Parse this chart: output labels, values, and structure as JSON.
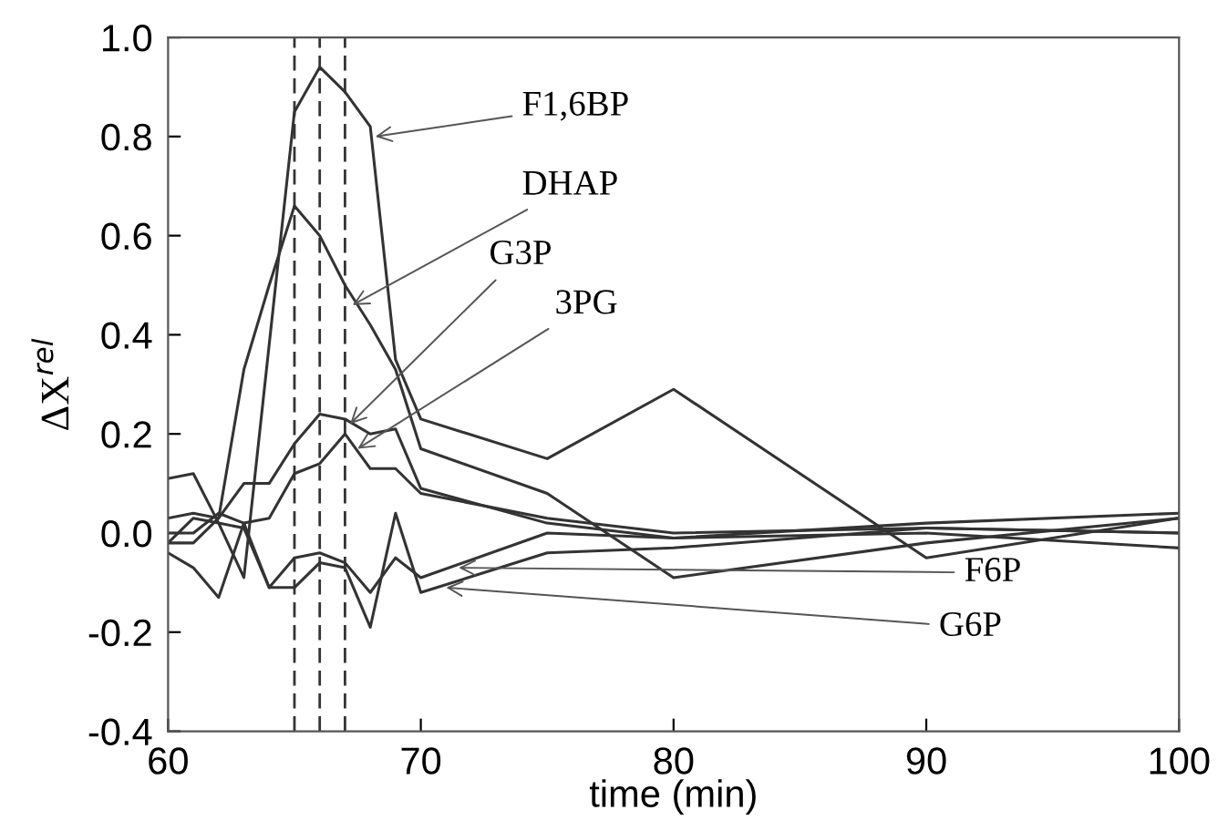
{
  "chart_data": {
    "type": "line",
    "xlabel": "time (min)",
    "ylabel": "ΔX$^{rel}$",
    "x": [
      60,
      61,
      62,
      63,
      64,
      65,
      66,
      67,
      68,
      69,
      70,
      75,
      80,
      90,
      100
    ],
    "series": [
      {
        "color": "#333333",
        "values": [
          0.11,
          0.12,
          0.02,
          -0.09,
          0.38,
          0.85,
          0.94,
          0.89,
          0.82,
          0.35,
          0.23,
          0.15,
          0.29,
          -0.05,
          0.03
        ]
      },
      {
        "color": "#333333",
        "values": [
          -0.02,
          -0.02,
          0.03,
          0.33,
          0.5,
          0.66,
          0.6,
          0.5,
          0.42,
          0.33,
          0.17,
          0.08,
          -0.09,
          -0.02,
          0.03
        ]
      },
      {
        "color": "#333333",
        "values": [
          0.03,
          0.04,
          0.03,
          0.1,
          0.1,
          0.18,
          0.24,
          0.23,
          0.2,
          0.21,
          0.09,
          0.02,
          -0.01,
          0.0,
          -0.03
        ]
      },
      {
        "color": "#333333",
        "values": [
          0.0,
          0.0,
          0.04,
          0.02,
          0.03,
          0.12,
          0.14,
          0.2,
          0.13,
          0.13,
          0.08,
          0.03,
          0.0,
          0.01,
          0.0
        ]
      },
      {
        "color": "#333333",
        "values": [
          -0.02,
          0.03,
          0.02,
          0.01,
          -0.11,
          -0.05,
          -0.04,
          -0.06,
          -0.12,
          -0.05,
          -0.09,
          0.0,
          -0.01,
          0.02,
          0.04
        ]
      },
      {
        "color": "#333333",
        "values": [
          -0.04,
          -0.07,
          -0.13,
          0.02,
          -0.11,
          -0.11,
          -0.06,
          -0.07,
          -0.19,
          0.04,
          -0.12,
          -0.04,
          -0.03,
          0.01,
          0.0
        ]
      }
    ],
    "xlim": [
      60,
      100
    ],
    "xticks": [
      60,
      70,
      80,
      90,
      100
    ],
    "ylim": [
      -0.4,
      1.0
    ],
    "yticks": [
      {
        "value": -0.4,
        "label": "-0.4"
      },
      {
        "value": -0.2,
        "label": "-0.2"
      },
      {
        "value": 0.0,
        "label": "0.0"
      },
      {
        "value": 0.2,
        "label": "0.2"
      },
      {
        "value": 0.4,
        "label": "0.4"
      },
      {
        "value": 0.6,
        "label": "0.6"
      },
      {
        "value": 0.8,
        "label": "0.8"
      },
      {
        "value": 1.0,
        "label": "1.0"
      }
    ],
    "ref_lines": [
      {
        "axis": "x",
        "value": 65,
        "color": "#333333",
        "line_style": "dashed"
      },
      {
        "axis": "x",
        "value": 66,
        "color": "#333333",
        "line_style": "dashed"
      },
      {
        "axis": "x",
        "value": 67,
        "color": "#333333",
        "line_style": "dashed"
      }
    ],
    "annotations": [
      {
        "text": "F1,6BP",
        "x": 68.2,
        "y": 0.8
      },
      {
        "text": "DHAP",
        "x": 67.3,
        "y": 0.46
      },
      {
        "text": "G3P",
        "x": 67.2,
        "y": 0.22
      },
      {
        "text": "3PG",
        "x": 67.5,
        "y": 0.17
      },
      {
        "text": "F6P",
        "x": 71.5,
        "y": -0.07
      },
      {
        "text": "G6P",
        "x": 71,
        "y": -0.11
      }
    ],
    "grid": false,
    "legend": false,
    "marker": "none",
    "line_style": "solid"
  }
}
